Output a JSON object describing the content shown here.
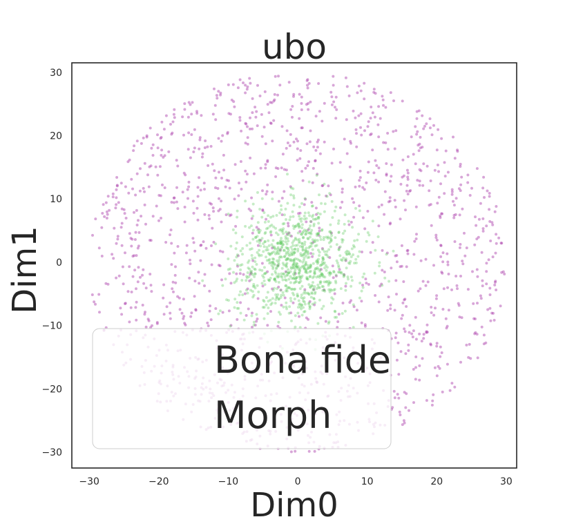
{
  "chart_data": {
    "type": "scatter",
    "title": "ubo",
    "xlabel": "Dim0",
    "ylabel": "Dim1",
    "xlim": [
      -32.5,
      31.5
    ],
    "ylim": [
      -32.5,
      31.5
    ],
    "xticks": [
      -30,
      -20,
      -10,
      0,
      10,
      20,
      30
    ],
    "yticks": [
      -30,
      -20,
      -10,
      0,
      10,
      20,
      30
    ],
    "grid": false,
    "legend_position": "bottom-left",
    "series": [
      {
        "name": "Bona fide",
        "color": "#5bc85b",
        "opacity": 0.35,
        "distribution": "dense gaussian cluster",
        "center": [
          0,
          0
        ],
        "spread_sd": 4.5,
        "extent_radius": 14,
        "point_count": 900
      },
      {
        "name": "Morph",
        "color": "#a83aa8",
        "opacity": 0.45,
        "distribution": "diffuse disc",
        "center": [
          0,
          0
        ],
        "extent_radius": 30,
        "point_count": 1400
      }
    ]
  }
}
